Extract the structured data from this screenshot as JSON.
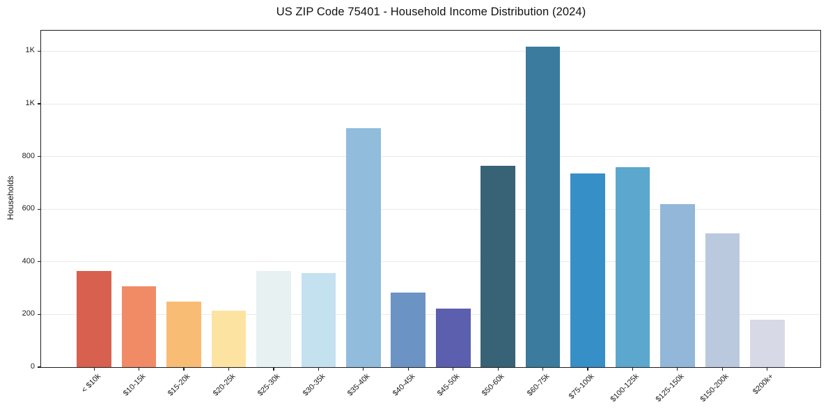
{
  "chart_data": {
    "type": "bar",
    "title": "US ZIP Code 75401 - Household Income Distribution (2024)",
    "xlabel": "",
    "ylabel": "Households",
    "categories": [
      "< $10k",
      "$10-15k",
      "$15-20k",
      "$20-25k",
      "$25-30k",
      "$30-35k",
      "$35-40k",
      "$40-45k",
      "$45-50k",
      "$50-60k",
      "$60-75k",
      "$75-100k",
      "$100-125k",
      "$125-150k",
      "$150-200k",
      "$200k+"
    ],
    "values": [
      366,
      308,
      250,
      215,
      366,
      357,
      907,
      283,
      221,
      765,
      1216,
      735,
      759,
      620,
      508,
      181
    ],
    "bar_colors": [
      "#d8604f",
      "#f18b66",
      "#f9bc74",
      "#fde3a2",
      "#e7f1f2",
      "#c4e1ef",
      "#92bcdc",
      "#6b93c4",
      "#5b5fae",
      "#386275",
      "#3a7b9e",
      "#378fc7",
      "#5ba7cd",
      "#92b7d9",
      "#bac9de",
      "#d8d9e6"
    ],
    "yticks": [
      {
        "v": 0,
        "label": "0"
      },
      {
        "v": 200,
        "label": "200"
      },
      {
        "v": 400,
        "label": "400"
      },
      {
        "v": 600,
        "label": "600"
      },
      {
        "v": 800,
        "label": "800"
      },
      {
        "v": 1000,
        "label": "1K"
      },
      {
        "v": 1200,
        "label": "1K"
      }
    ],
    "ylim": [
      0,
      1278
    ],
    "grid": "horizontal",
    "legend": "none",
    "colors": {
      "background": "#ffffff",
      "gridline": "#e9e9ee",
      "spine": "#1c1c1c",
      "text": "#1c1c1c"
    }
  }
}
